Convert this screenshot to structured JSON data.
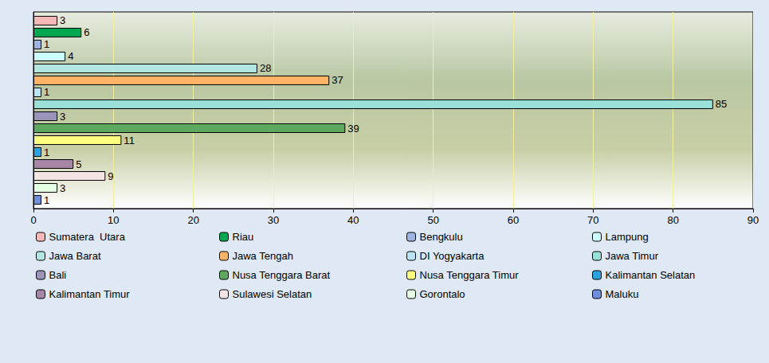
{
  "chart_data": {
    "type": "bar",
    "orientation": "horizontal",
    "categories": [
      null
    ],
    "series": [
      {
        "name": "Sumatera  Utara",
        "color": "#f7b8b8",
        "values": [
          3
        ]
      },
      {
        "name": "Riau",
        "color": "#00a650",
        "values": [
          6
        ]
      },
      {
        "name": "Bengkulu",
        "color": "#9db3e0",
        "values": [
          1
        ]
      },
      {
        "name": "Lampung",
        "color": "#ccffff",
        "values": [
          4
        ]
      },
      {
        "name": "Jawa Barat",
        "color": "#b3e6e0",
        "values": [
          28
        ]
      },
      {
        "name": "Jawa Tengah",
        "color": "#ffb366",
        "values": [
          37
        ]
      },
      {
        "name": "DI Yogyakarta",
        "color": "#b8e4f4",
        "values": [
          1
        ]
      },
      {
        "name": "Jawa Timur",
        "color": "#99e0d8",
        "values": [
          85
        ]
      },
      {
        "name": "Bali",
        "color": "#9a94b8",
        "values": [
          3
        ]
      },
      {
        "name": "Nusa Tenggara Barat",
        "color": "#5fa85f",
        "values": [
          39
        ]
      },
      {
        "name": "Nusa Tenggara Timur",
        "color": "#ffff80",
        "values": [
          11
        ]
      },
      {
        "name": "Kalimantan Selatan",
        "color": "#2aa4e0",
        "values": [
          1
        ]
      },
      {
        "name": "Kalimantan Timur",
        "color": "#a886a8",
        "values": [
          5
        ]
      },
      {
        "name": "Sulawesi Selatan",
        "color": "#f4e4e4",
        "values": [
          9
        ]
      },
      {
        "name": "Gorontalo",
        "color": "#e4ffe4",
        "values": [
          3
        ]
      },
      {
        "name": "Maluku",
        "color": "#6f8fdc",
        "values": [
          1
        ]
      }
    ],
    "xlim": [
      0,
      90
    ],
    "xticks": [
      0,
      10,
      20,
      30,
      40,
      50,
      60,
      70,
      80,
      90
    ],
    "grid": true,
    "data_labels": true,
    "legend": "bottom",
    "tick_labels": "x"
  }
}
